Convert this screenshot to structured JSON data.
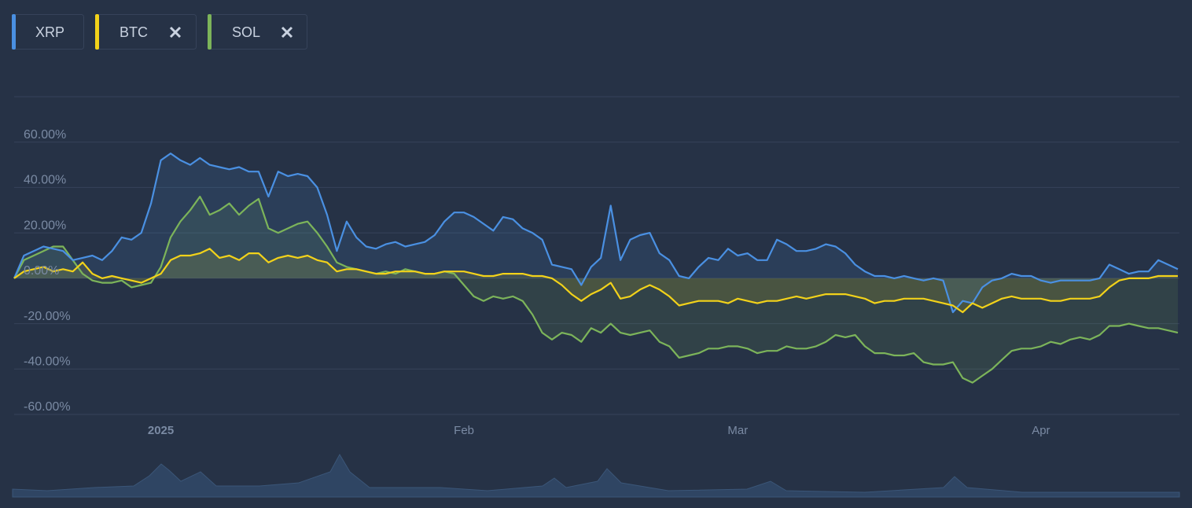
{
  "chart_data": {
    "type": "line",
    "categories": [
      null,
      null,
      null,
      null,
      null,
      null,
      null,
      null,
      null,
      null,
      null,
      null,
      null,
      null,
      null,
      "2025",
      null,
      null,
      null,
      null,
      null,
      null,
      null,
      null,
      null,
      null,
      null,
      null,
      null,
      null,
      null,
      null,
      null,
      null,
      null,
      null,
      null,
      null,
      null,
      null,
      null,
      null,
      null,
      null,
      null,
      null,
      "Feb",
      null,
      null,
      null,
      null,
      null,
      null,
      null,
      null,
      null,
      null,
      null,
      null,
      null,
      null,
      null,
      null,
      null,
      null,
      null,
      null,
      null,
      null,
      null,
      null,
      null,
      null,
      null,
      "Mar",
      null,
      null,
      null,
      null,
      null,
      null,
      null,
      null,
      null,
      null,
      null,
      null,
      null,
      null,
      null,
      null,
      null,
      null,
      null,
      null,
      null,
      null,
      null,
      null,
      null,
      null,
      null,
      null,
      null,
      null,
      "Apr",
      null,
      null,
      null,
      null,
      null,
      null,
      null,
      null,
      null,
      null,
      null,
      null,
      null,
      null
    ],
    "series": [
      {
        "name": "XRP",
        "color": "#4a90e2",
        "values": [
          0,
          10,
          12,
          14,
          13,
          12,
          8,
          9,
          10,
          8,
          12,
          18,
          17,
          20,
          33,
          52,
          55,
          52,
          50,
          53,
          50,
          49,
          48,
          49,
          47,
          47,
          36,
          47,
          45,
          46,
          45,
          40,
          28,
          12,
          25,
          18,
          14,
          13,
          15,
          16,
          14,
          15,
          16,
          19,
          25,
          29,
          29,
          27,
          24,
          21,
          27,
          26,
          22,
          20,
          17,
          6,
          5,
          4,
          -3,
          5,
          9,
          32,
          8,
          17,
          19,
          20,
          11,
          8,
          1,
          0,
          5,
          9,
          8,
          13,
          10,
          11,
          8,
          8,
          17,
          15,
          12,
          12,
          13,
          15,
          14,
          11,
          6,
          3,
          1,
          1,
          0,
          1,
          0,
          -1,
          0,
          -1,
          -15,
          -10,
          -11,
          -4,
          -1,
          0,
          2,
          1,
          1,
          -1,
          -2,
          -1,
          -1,
          -1,
          -1,
          0,
          6,
          4,
          2,
          3,
          3,
          8,
          6,
          4
        ]
      },
      {
        "name": "BTC",
        "color": "#f2d21a",
        "values": [
          0,
          3,
          4,
          5,
          3,
          4,
          3,
          7,
          2,
          0,
          1,
          0,
          -1,
          -2,
          0,
          2,
          8,
          10,
          10,
          11,
          13,
          9,
          10,
          8,
          11,
          11,
          7,
          9,
          10,
          9,
          10,
          8,
          7,
          3,
          4,
          4,
          3,
          2,
          2,
          3,
          3,
          3,
          2,
          2,
          3,
          3,
          3,
          2,
          1,
          1,
          2,
          2,
          2,
          1,
          1,
          0,
          -3,
          -7,
          -10,
          -7,
          -5,
          -2,
          -9,
          -8,
          -5,
          -3,
          -5,
          -8,
          -12,
          -11,
          -10,
          -10,
          -10,
          -11,
          -9,
          -10,
          -11,
          -10,
          -10,
          -9,
          -8,
          -9,
          -8,
          -7,
          -7,
          -7,
          -8,
          -9,
          -11,
          -10,
          -10,
          -9,
          -9,
          -9,
          -10,
          -11,
          -12,
          -15,
          -11,
          -13,
          -11,
          -9,
          -8,
          -9,
          -9,
          -9,
          -10,
          -10,
          -9,
          -9,
          -9,
          -8,
          -4,
          -1,
          0,
          0,
          0,
          1,
          1,
          1
        ]
      },
      {
        "name": "SOL",
        "color": "#7cb45a",
        "values": [
          0,
          8,
          10,
          12,
          14,
          14,
          8,
          2,
          -1,
          -2,
          -2,
          -1,
          -4,
          -3,
          -2,
          5,
          18,
          25,
          30,
          36,
          28,
          30,
          33,
          28,
          32,
          35,
          22,
          20,
          22,
          24,
          25,
          20,
          14,
          7,
          5,
          4,
          3,
          2,
          3,
          2,
          4,
          3,
          2,
          2,
          3,
          2,
          -3,
          -8,
          -10,
          -8,
          -9,
          -8,
          -10,
          -16,
          -24,
          -27,
          -24,
          -25,
          -28,
          -22,
          -24,
          -20,
          -24,
          -25,
          -24,
          -23,
          -28,
          -30,
          -35,
          -34,
          -33,
          -31,
          -31,
          -30,
          -30,
          -31,
          -33,
          -32,
          -32,
          -30,
          -31,
          -31,
          -30,
          -28,
          -25,
          -26,
          -25,
          -30,
          -33,
          -33,
          -34,
          -34,
          -33,
          -37,
          -38,
          -38,
          -37,
          -44,
          -46,
          -43,
          -40,
          -36,
          -32,
          -31,
          -31,
          -30,
          -28,
          -29,
          -27,
          -26,
          -27,
          -25,
          -21,
          -21,
          -20,
          -21,
          -22,
          -22,
          -23,
          -24
        ]
      }
    ],
    "ylim": [
      -60,
      80
    ],
    "yticks": [
      {
        "value": 60,
        "label": "60.00%"
      },
      {
        "value": 40,
        "label": "40.00%"
      },
      {
        "value": 20,
        "label": "20.00%"
      },
      {
        "value": 0,
        "label": "0.00%"
      },
      {
        "value": -20,
        "label": "-20.00%"
      },
      {
        "value": -40,
        "label": "-40.00%"
      },
      {
        "value": -60,
        "label": "-60.00%"
      }
    ],
    "grid": true
  }
}
